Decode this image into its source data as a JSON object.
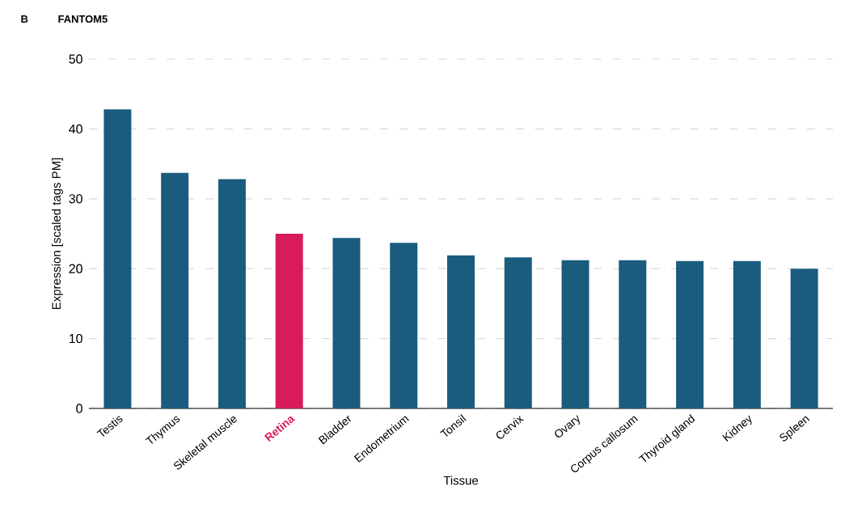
{
  "chart_data": {
    "type": "bar",
    "title": "FANTOM5",
    "annotations": [
      "B"
    ],
    "xlabel": "Tissue",
    "ylabel": "Expression [scaled tags PM]",
    "categories": [
      "Testis",
      "Thymus",
      "Skeletal muscle",
      "Retina",
      "Bladder",
      "Endometrium",
      "Tonsil",
      "Cervix",
      "Ovary",
      "Corpus callosum",
      "Thyroid gland",
      "Kidney",
      "Spleen"
    ],
    "values": [
      42.8,
      33.7,
      32.8,
      25.0,
      24.4,
      23.7,
      21.9,
      21.6,
      21.2,
      21.2,
      21.1,
      21.1,
      20.0
    ],
    "colors": [
      "#1a5c7e",
      "#1a5c7e",
      "#1a5c7e",
      "#d81b5a",
      "#1a5c7e",
      "#1a5c7e",
      "#1a5c7e",
      "#1a5c7e",
      "#1a5c7e",
      "#1a5c7e",
      "#1a5c7e",
      "#1a5c7e",
      "#1a5c7e"
    ],
    "ylim": [
      0,
      50
    ],
    "yticks": [
      0,
      10,
      20,
      30,
      40,
      50
    ],
    "grid": "y"
  }
}
